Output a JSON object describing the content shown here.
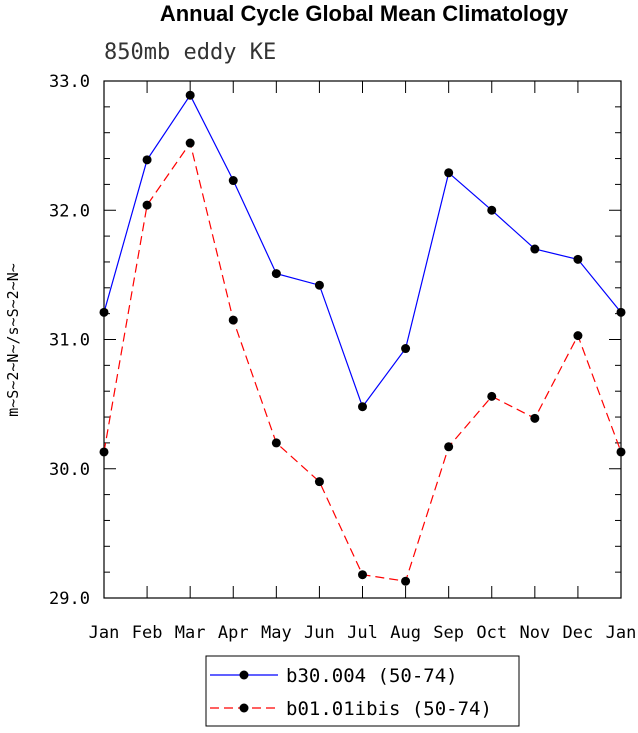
{
  "chart_data": {
    "type": "line",
    "title": "Annual Cycle Global Mean Climatology",
    "subtitle": "850mb eddy KE",
    "xlabel": "",
    "ylabel": "m~S~2~N~/s~S~2~N~",
    "categories": [
      "Jan",
      "Feb",
      "Mar",
      "Apr",
      "May",
      "Jun",
      "Jul",
      "Aug",
      "Sep",
      "Oct",
      "Nov",
      "Dec",
      "Jan"
    ],
    "ylim": [
      29.0,
      33.0
    ],
    "yticks": [
      "29.0",
      "30.0",
      "31.0",
      "32.0",
      "33.0"
    ],
    "grid": false,
    "legend_position": "bottom-center",
    "series": [
      {
        "name": "b30.004 (50-74)",
        "color": "#0000ff",
        "dash": "solid",
        "marker": "circle",
        "values": [
          31.21,
          32.39,
          32.89,
          32.23,
          31.51,
          31.42,
          30.48,
          30.93,
          32.29,
          32.0,
          31.7,
          31.62,
          31.21
        ]
      },
      {
        "name": "b01.01ibis (50-74)",
        "color": "#ff0000",
        "dash": "dashed",
        "marker": "circle",
        "values": [
          30.13,
          32.04,
          32.52,
          31.15,
          30.2,
          29.9,
          29.18,
          29.13,
          30.17,
          30.56,
          30.39,
          31.03,
          30.13
        ]
      }
    ]
  }
}
